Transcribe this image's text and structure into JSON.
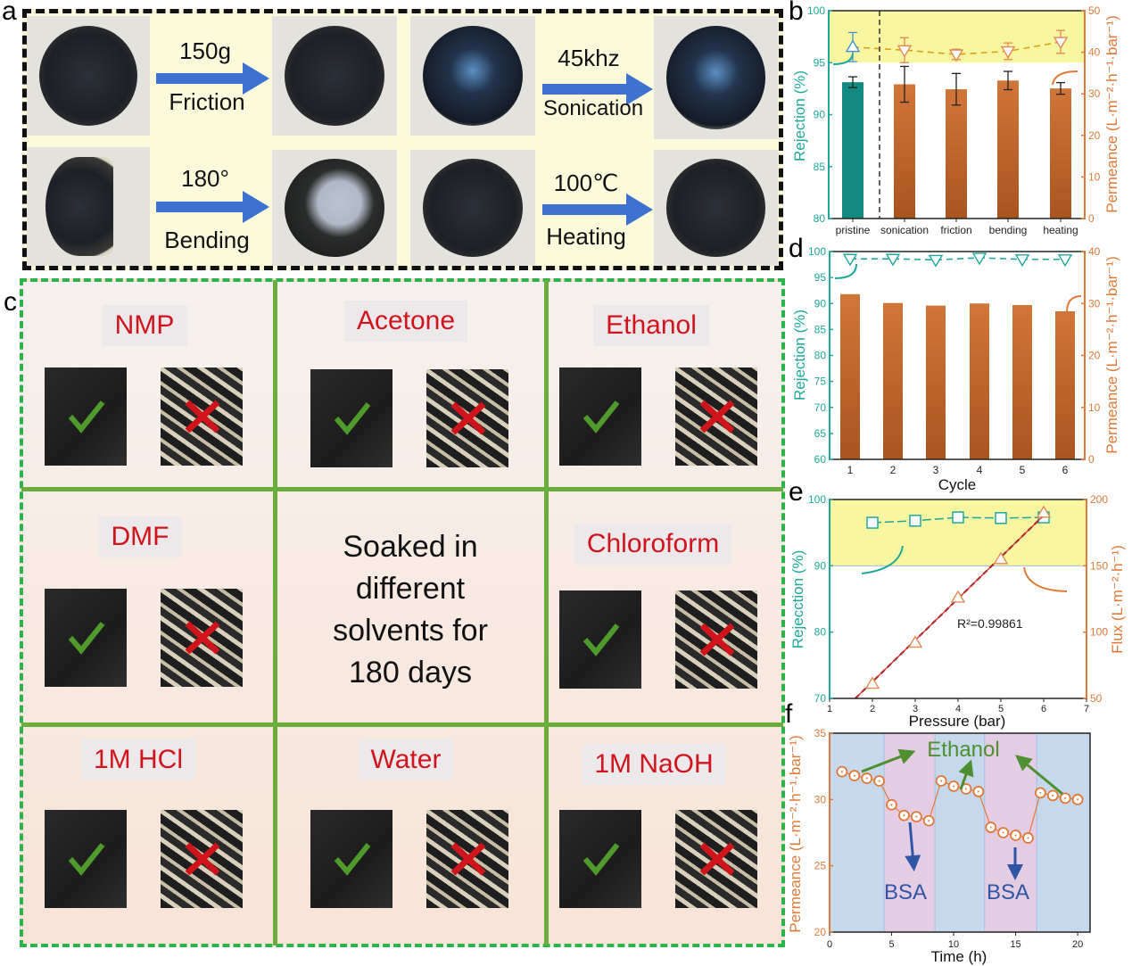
{
  "panel_labels": {
    "a": "a",
    "b": "b",
    "c": "c",
    "d": "d",
    "e": "e",
    "f": "f"
  },
  "panel_a": {
    "treatments": [
      {
        "top": "150g",
        "bottom": "Friction"
      },
      {
        "top": "45khz",
        "bottom": "Sonication"
      },
      {
        "top": "180°",
        "bottom": "Bending"
      },
      {
        "top": "100℃",
        "bottom": "Heating"
      }
    ],
    "arrow_color": "#3d72d0"
  },
  "panel_c": {
    "center_text": [
      "Soaked in",
      "different",
      "solvents for",
      "180 days"
    ],
    "solvents": [
      "NMP",
      "Acetone",
      "Ethanol",
      "DMF",
      "Chloroform",
      "1M HCl",
      "Water",
      "1M NaOH"
    ],
    "good_icon": "check-icon",
    "bad_icon": "cross-icon",
    "colors": {
      "label": "#d0141c",
      "check": "#4f9a2a",
      "cross": "#d0141c",
      "grid": "#6aad3c"
    }
  },
  "chart_data": [
    {
      "panel": "b",
      "type": "bar",
      "categories": [
        "pristine",
        "sonication",
        "friction",
        "bending",
        "heating"
      ],
      "left_axis": {
        "label": "Rejection (%)",
        "range": [
          80,
          100
        ],
        "ticks": [
          80,
          85,
          90,
          95,
          100
        ],
        "color": "#1fa89a"
      },
      "right_axis": {
        "label": "Permeance (L·m⁻²·h⁻¹·bar⁻¹)",
        "range": [
          0,
          50
        ],
        "ticks": [
          0,
          10,
          20,
          30,
          40,
          50
        ],
        "color": "#e07a3a"
      },
      "bars": {
        "axis": "right",
        "values": [
          32.8,
          32.3,
          31.1,
          33.2,
          31.3
        ],
        "errors": [
          1.3,
          4.3,
          3.8,
          2.2,
          1.4
        ],
        "colors": [
          "#138a80",
          "#c0652a",
          "#c0652a",
          "#c0652a",
          "#c0652a"
        ]
      },
      "markers": {
        "axis": "left",
        "values": [
          96.5,
          96.2,
          95.8,
          96.1,
          97.0
        ],
        "errors": [
          1.4,
          1.2,
          0.5,
          0.8,
          1.1
        ]
      },
      "shaded_band": [
        95,
        100
      ],
      "band_color": "#f8f6a0"
    },
    {
      "panel": "d",
      "type": "bar",
      "categories": [
        "1",
        "2",
        "3",
        "4",
        "5",
        "6"
      ],
      "xlabel": "Cycle",
      "left_axis": {
        "label": "Rejection (%)",
        "range": [
          60,
          100
        ],
        "ticks": [
          60,
          65,
          70,
          75,
          80,
          85,
          90,
          95,
          100
        ],
        "color": "#1fa89a"
      },
      "right_axis": {
        "label": "Permeance (L·m⁻²·h⁻¹·bar⁻¹)",
        "range": [
          0,
          40
        ],
        "ticks": [
          0,
          10,
          20,
          30,
          40
        ],
        "color": "#e07a3a"
      },
      "bars": {
        "axis": "right",
        "values": [
          31.8,
          30.1,
          29.6,
          30.0,
          29.7,
          28.5
        ]
      },
      "markers": {
        "axis": "left",
        "values": [
          98.6,
          98.6,
          98.4,
          98.8,
          98.5,
          98.5
        ]
      }
    },
    {
      "panel": "e",
      "type": "scatter",
      "xlabel": "Pressure (bar)",
      "xlim": [
        1,
        7
      ],
      "xticks": [
        1,
        2,
        3,
        4,
        5,
        6,
        7
      ],
      "left_axis": {
        "label": "Rejecction (%)",
        "range": [
          70,
          100
        ],
        "ticks": [
          70,
          80,
          90,
          100
        ],
        "color": "#1fa89a"
      },
      "right_axis": {
        "label": "Flux (L·m⁻²·h⁻¹)",
        "range": [
          50,
          200
        ],
        "ticks": [
          50,
          100,
          150,
          200
        ],
        "color": "#e07a3a"
      },
      "x": [
        2,
        3,
        4,
        5,
        6
      ],
      "rejection": [
        96.5,
        96.8,
        97.3,
        97.2,
        97.3
      ],
      "flux": [
        61,
        92,
        126,
        155,
        190
      ],
      "fit": {
        "x": [
          1.6,
          6
        ],
        "y": [
          50,
          188
        ],
        "annotation": "R²=0.99861"
      },
      "shaded_band": [
        90,
        100
      ],
      "band_color": "#f8f6a0"
    },
    {
      "panel": "f",
      "type": "line",
      "xlabel": "Time (h)",
      "xlim": [
        0,
        21
      ],
      "xticks": [
        0,
        5,
        10,
        15,
        20
      ],
      "left_axis": {
        "label": "Permeance (L·m⁻²·h⁻¹·bar⁻¹)",
        "range": [
          20,
          35
        ],
        "ticks": [
          20,
          25,
          30,
          35
        ],
        "color": "#e07a3a"
      },
      "x": [
        1,
        2,
        3,
        4,
        5,
        6,
        7,
        8,
        9,
        10,
        11,
        12,
        13,
        14,
        15,
        16,
        17,
        18,
        19,
        20
      ],
      "y": [
        32.1,
        31.8,
        31.6,
        31.4,
        29.6,
        28.8,
        28.7,
        28.4,
        31.4,
        31.0,
        30.8,
        30.6,
        27.9,
        27.5,
        27.3,
        27.1,
        30.5,
        30.3,
        30.1,
        30.0
      ],
      "regions": [
        {
          "from": 0,
          "to": 4.4,
          "type": "Ethanol",
          "color": "#c6d8ec"
        },
        {
          "from": 4.4,
          "to": 8.5,
          "type": "BSA",
          "color": "#e4cde3"
        },
        {
          "from": 8.5,
          "to": 12.5,
          "type": "Ethanol",
          "color": "#c6d8ec"
        },
        {
          "from": 12.5,
          "to": 16.7,
          "type": "BSA",
          "color": "#e4cde3"
        },
        {
          "from": 16.7,
          "to": 21,
          "type": "Ethanol",
          "color": "#c6d8ec"
        }
      ],
      "annotations": {
        "ethanol": "Ethanol",
        "bsa": "BSA",
        "ethanol_color": "#4f8f2f",
        "bsa_color": "#2f55a5"
      }
    }
  ]
}
